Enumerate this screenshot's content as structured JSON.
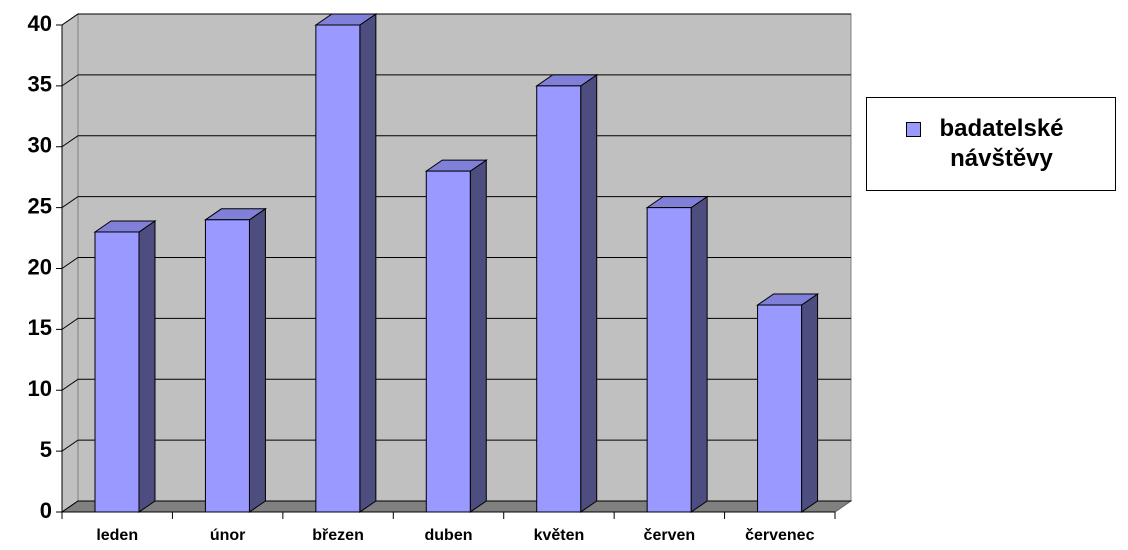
{
  "chart_data": {
    "type": "bar",
    "categories": [
      "leden",
      "únor",
      "březen",
      "duben",
      "květen",
      "červen",
      "červenec"
    ],
    "series": [
      {
        "name": "badatelské návštěvy",
        "color": "#9999ff",
        "values": [
          23,
          24,
          40,
          28,
          35,
          25,
          17
        ]
      }
    ],
    "ylim": [
      0,
      40
    ],
    "yticks": [
      0,
      5,
      10,
      15,
      20,
      25,
      30,
      35,
      40
    ],
    "grid": true,
    "legend": "right"
  }
}
